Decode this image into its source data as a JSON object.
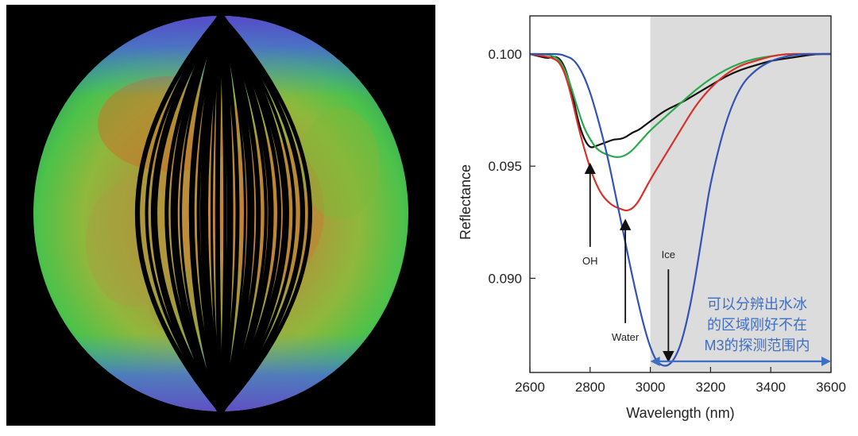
{
  "moon_map": {
    "description_alt": "M3 lunar mosaic"
  },
  "chart_data": {
    "type": "line",
    "xlabel": "Wavelength (nm)",
    "ylabel": "Reflectance",
    "xlim": [
      2600,
      3600
    ],
    "ylim": [
      0.0858,
      0.1017
    ],
    "xticks": [
      2600,
      2800,
      3000,
      3200,
      3400,
      3600
    ],
    "yticks": [
      0.1,
      0.095,
      0.09
    ],
    "ytick_labels": [
      "0.100",
      "0.095",
      "0.090"
    ],
    "shaded_region": {
      "x_start": 3000,
      "x_end": 3600,
      "color": "#dcdcdc"
    },
    "series": [
      {
        "name": "OH",
        "color": "#111111",
        "x": [
          2600,
          2630,
          2660,
          2680,
          2700,
          2720,
          2740,
          2760,
          2780,
          2800,
          2820,
          2840,
          2860,
          2880,
          2900,
          2920,
          2940,
          2960,
          2980,
          3000,
          3050,
          3100,
          3150,
          3200,
          3250,
          3300,
          3350,
          3400,
          3450,
          3500,
          3550,
          3600
        ],
        "y": [
          0.1,
          0.0999,
          0.0998,
          0.0999,
          0.0998,
          0.0993,
          0.0983,
          0.097,
          0.0962,
          0.0958,
          0.0959,
          0.096,
          0.0961,
          0.0962,
          0.0962,
          0.0963,
          0.0965,
          0.0966,
          0.0968,
          0.097,
          0.0975,
          0.0978,
          0.0982,
          0.0986,
          0.099,
          0.0993,
          0.0995,
          0.0997,
          0.0998,
          0.0999,
          0.1,
          0.1
        ]
      },
      {
        "name": "Water (green)",
        "color": "#2aa84a",
        "x": [
          2600,
          2650,
          2680,
          2700,
          2720,
          2740,
          2760,
          2780,
          2800,
          2820,
          2840,
          2860,
          2880,
          2900,
          2920,
          2940,
          2960,
          2980,
          3000,
          3050,
          3100,
          3150,
          3200,
          3250,
          3300,
          3350,
          3400,
          3450,
          3500,
          3550,
          3600
        ],
        "y": [
          0.1,
          0.1,
          0.0999,
          0.0997,
          0.0992,
          0.0984,
          0.0975,
          0.0967,
          0.0962,
          0.0958,
          0.0956,
          0.0955,
          0.0954,
          0.0954,
          0.0955,
          0.0957,
          0.096,
          0.0963,
          0.0966,
          0.0972,
          0.0978,
          0.0984,
          0.0989,
          0.0993,
          0.0996,
          0.0998,
          0.0999,
          0.1,
          0.1,
          0.1,
          0.1
        ]
      },
      {
        "name": "Water (red)",
        "color": "#d9302a",
        "x": [
          2600,
          2650,
          2680,
          2700,
          2720,
          2740,
          2760,
          2780,
          2800,
          2820,
          2840,
          2860,
          2880,
          2900,
          2920,
          2940,
          2960,
          2980,
          3000,
          3050,
          3100,
          3150,
          3200,
          3250,
          3300,
          3350,
          3400,
          3450,
          3500,
          3550,
          3600
        ],
        "y": [
          0.1,
          0.0999,
          0.0998,
          0.0996,
          0.099,
          0.098,
          0.0968,
          0.0958,
          0.0949,
          0.0942,
          0.0937,
          0.0934,
          0.0932,
          0.0931,
          0.093,
          0.0931,
          0.0934,
          0.0939,
          0.0944,
          0.0955,
          0.0966,
          0.0977,
          0.0985,
          0.0991,
          0.0995,
          0.0997,
          0.0999,
          0.1,
          0.1,
          0.1,
          0.1
        ]
      },
      {
        "name": "Ice",
        "color": "#3352b8",
        "x": [
          2600,
          2650,
          2700,
          2720,
          2740,
          2760,
          2780,
          2800,
          2820,
          2840,
          2860,
          2880,
          2900,
          2920,
          2940,
          2960,
          2980,
          3000,
          3020,
          3040,
          3060,
          3080,
          3100,
          3120,
          3140,
          3160,
          3180,
          3200,
          3250,
          3300,
          3350,
          3400,
          3450,
          3500,
          3550,
          3600
        ],
        "y": [
          0.1,
          0.1,
          0.1,
          0.0999,
          0.0998,
          0.0995,
          0.099,
          0.0983,
          0.0974,
          0.0964,
          0.0953,
          0.094,
          0.0927,
          0.0914,
          0.0901,
          0.0889,
          0.0878,
          0.0869,
          0.0863,
          0.0861,
          0.0861,
          0.0864,
          0.087,
          0.088,
          0.0893,
          0.0909,
          0.0926,
          0.0943,
          0.097,
          0.0986,
          0.0993,
          0.0997,
          0.0999,
          0.1,
          0.1,
          0.1
        ]
      }
    ],
    "annotations": [
      {
        "text": "OH",
        "x": 2800,
        "arrow_from_y": 0.0914,
        "arrow_to_y": 0.0949
      },
      {
        "text": "Water",
        "x": 2917,
        "arrow_from_y": 0.088,
        "arrow_to_y": 0.0924
      },
      {
        "text": "Ice",
        "x": 3060,
        "arrow_from_y": 0.0904,
        "arrow_to_y": 0.0865
      }
    ],
    "note_lines": [
      "可以分辨出水冰",
      "的区域刚好不在",
      "M3的探测范围内"
    ],
    "note_color": "#3d6fc4",
    "range_arrow": {
      "x_start": 3000,
      "x_end": 3600,
      "color": "#3d6fc4"
    }
  }
}
